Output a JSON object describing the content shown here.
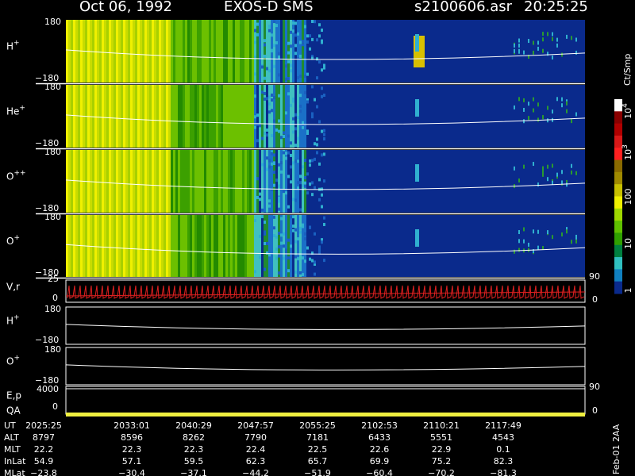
{
  "header": {
    "date": "Oct 06, 1992",
    "instrument": "EXOS-D SMS",
    "file": "s2100606.asr",
    "time": "20:25:25"
  },
  "spectra": [
    {
      "label": {
        "base": "H",
        "sup": "+"
      },
      "top": "180",
      "bottom": "−180"
    },
    {
      "label": {
        "base": "He",
        "sup": "+"
      },
      "top": "180",
      "bottom": "−180"
    },
    {
      "label": {
        "base": "O",
        "sup": "++"
      },
      "top": "180",
      "bottom": "−180"
    },
    {
      "label": {
        "base": "O",
        "sup": "+"
      },
      "top": "180",
      "bottom": "−180"
    }
  ],
  "velocity": {
    "label": "V,r",
    "top": "25",
    "bottom": "0",
    "right_top": "90",
    "right_bottom": "0"
  },
  "pitch": [
    {
      "label": {
        "base": "H",
        "sup": "+"
      },
      "top": "180",
      "bottom": "−180"
    },
    {
      "label": {
        "base": "O",
        "sup": "+"
      },
      "top": "180",
      "bottom": "−180"
    }
  ],
  "energy": {
    "label": "E,p",
    "top": "4000",
    "right_top": "90",
    "right_bottom": "0"
  },
  "quality": {
    "label": "QA",
    "bottom": "0"
  },
  "colorbar": {
    "title": "Ct/Smp",
    "labels": [
      {
        "base": "10",
        "sup": "4"
      },
      {
        "base": "10",
        "sup": "3"
      },
      {
        "base": "100",
        "sup": ""
      },
      {
        "base": "10",
        "sup": ""
      },
      {
        "base": "1",
        "sup": ""
      }
    ]
  },
  "footer": {
    "rows": [
      {
        "label": "UT",
        "values": [
          "2025:25",
          "2033:01",
          "2040:29",
          "2047:57",
          "2055:25",
          "2102:53",
          "2110:21",
          "2117:49"
        ]
      },
      {
        "label": "ALT",
        "values": [
          "8797",
          "8596",
          "8262",
          "7790",
          "7181",
          "6433",
          "5551",
          "4543"
        ]
      },
      {
        "label": "MLT",
        "values": [
          "22.2",
          "22.3",
          "22.3",
          "22.4",
          "22.5",
          "22.6",
          "22.9",
          "0.1"
        ]
      },
      {
        "label": "InLat",
        "values": [
          "54.9",
          "57.1",
          "59.5",
          "62.3",
          "65.7",
          "69.9",
          "75.2",
          "82.3"
        ]
      },
      {
        "label": "MLat",
        "values": [
          "−23.8",
          "−30.4",
          "−37.1",
          "−44.2",
          "−51.9",
          "−60.4",
          "−70.2",
          "−81.3"
        ]
      }
    ],
    "stamp": "Feb-01 2AA"
  }
}
